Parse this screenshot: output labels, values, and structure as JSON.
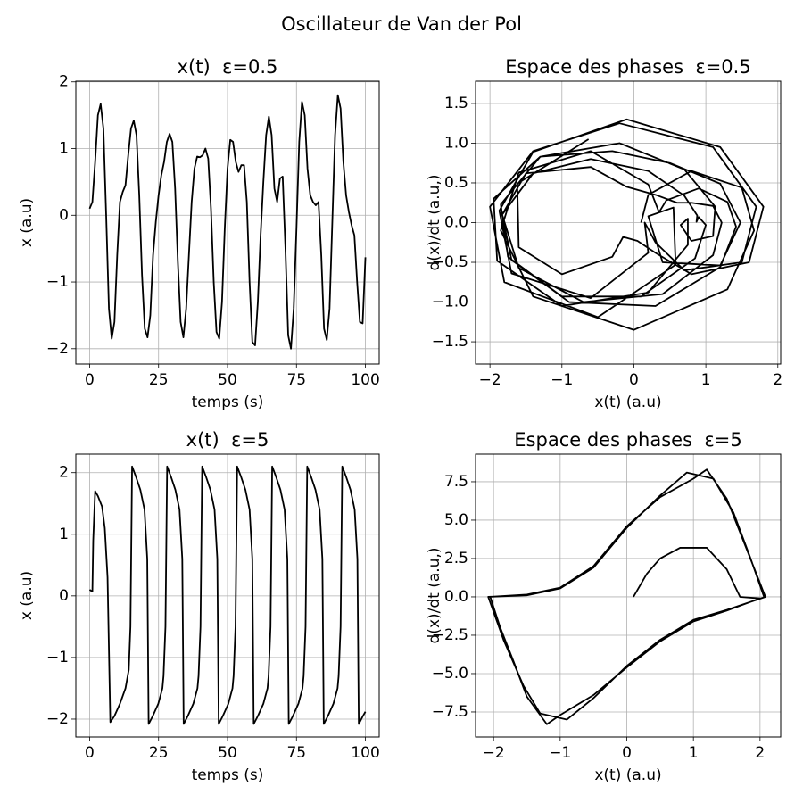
{
  "title": "Oscillateur de Van der Pol",
  "chart_data": [
    {
      "type": "line",
      "title": "x(t)  ε=0.5",
      "xlabel": "temps (s)",
      "ylabel": "x (a.u)",
      "color": "#000000",
      "grid": true,
      "xlim": [
        -5,
        105
      ],
      "ylim": [
        -2.23,
        2.01
      ],
      "xticks": [
        0,
        25,
        50,
        75,
        100
      ],
      "yticks": [
        {
          "value": -2,
          "label": "−2"
        },
        {
          "value": -1,
          "label": "−1"
        },
        0,
        1,
        2
      ],
      "x": [
        0,
        1,
        2,
        3,
        4,
        5,
        6,
        7,
        8,
        9,
        10,
        11,
        12,
        13,
        14,
        15,
        16,
        17,
        18,
        19,
        20,
        21,
        22,
        23,
        24,
        25,
        26,
        27,
        28,
        29,
        30,
        31,
        32,
        33,
        34,
        35,
        36,
        37,
        38,
        39,
        40,
        41,
        42,
        43,
        44,
        45,
        46,
        47,
        48,
        49,
        50,
        51,
        52,
        53,
        54,
        55,
        56,
        57,
        58,
        59,
        60,
        61,
        62,
        63,
        64,
        65,
        66,
        67,
        68,
        69,
        70,
        71,
        72,
        73,
        74,
        75,
        76,
        77,
        78,
        79,
        80,
        81,
        82,
        83,
        84,
        85,
        86,
        87,
        88,
        89,
        90,
        91,
        92,
        93,
        94,
        95,
        96,
        97,
        98,
        99,
        100
      ],
      "values": [
        0.1,
        0.2,
        0.8,
        1.5,
        1.67,
        1.3,
        0,
        -1.4,
        -1.85,
        -1.6,
        -0.6,
        0.2,
        0.35,
        0.45,
        0.9,
        1.3,
        1.42,
        1.2,
        0.3,
        -0.9,
        -1.7,
        -1.83,
        -1.5,
        -0.6,
        -0.1,
        0.3,
        0.6,
        0.8,
        1.1,
        1.22,
        1.1,
        0.4,
        -0.7,
        -1.6,
        -1.83,
        -1.4,
        -0.6,
        0.2,
        0.7,
        0.88,
        0.87,
        0.9,
        1.0,
        0.85,
        0.1,
        -1.0,
        -1.75,
        -1.85,
        -1.3,
        -0.2,
        0.7,
        1.13,
        1.1,
        0.8,
        0.65,
        0.75,
        0.75,
        0.2,
        -1.0,
        -1.9,
        -1.95,
        -1.3,
        -0.3,
        0.5,
        1.2,
        1.48,
        1.2,
        0.4,
        0.2,
        0.55,
        0.58,
        -0.5,
        -1.8,
        -2.0,
        -1.4,
        -0.2,
        1.1,
        1.7,
        1.5,
        0.7,
        0.3,
        0.2,
        0.15,
        0.2,
        -0.6,
        -1.7,
        -1.87,
        -1.4,
        -0.1,
        1.2,
        1.8,
        1.6,
        0.8,
        0.3,
        0.05,
        -0.15,
        -0.3,
        -1.0,
        -1.6,
        -1.62,
        -0.63
      ]
    },
    {
      "type": "line",
      "title": "Espace des phases  ε=0.5",
      "xlabel": "x(t) (a.u)",
      "ylabel": "d(x)/dt (a.u,)",
      "color": "#000000",
      "grid": true,
      "xlim": [
        -2.2,
        2.04
      ],
      "ylim": [
        -1.78,
        1.78
      ],
      "xticks": [
        {
          "value": -2,
          "label": "−2"
        },
        {
          "value": -1,
          "label": "−1"
        },
        0,
        1,
        2
      ],
      "yticks": [
        {
          "value": -1.5,
          "label": "−1.5"
        },
        {
          "value": -1,
          "label": "−1.0"
        },
        {
          "value": -0.5,
          "label": "−0.5"
        },
        {
          "value": 0,
          "label": "0.0"
        },
        0.5,
        {
          "value": 1,
          "label": "1.0"
        },
        1.5
      ],
      "x": [
        0.1,
        0.2,
        0.8,
        1.5,
        1.67,
        1.3,
        0,
        -1.4,
        -1.85,
        -1.6,
        -0.6,
        0.2,
        0.35,
        0.45,
        0.9,
        1.3,
        1.42,
        1.2,
        0.3,
        -0.9,
        -1.7,
        -1.83,
        -1.5,
        -0.6,
        -0.1,
        0.3,
        0.6,
        0.8,
        1.1,
        1.22,
        1.1,
        0.4,
        -0.7,
        -1.6,
        -1.83,
        -1.4,
        -0.6,
        0.2,
        0.7,
        0.88,
        0.87,
        0.9,
        1.0,
        0.85,
        0.1,
        -1.0,
        -1.75,
        -1.85,
        -1.3,
        -0.2,
        0.7,
        1.13,
        1.1,
        0.8,
        0.65,
        0.75,
        0.75,
        0.2,
        -1.0,
        -1.9,
        -1.95,
        -1.3,
        -0.3,
        0.5,
        1.2,
        1.48,
        1.2,
        0.4,
        0.2,
        0.55,
        0.58,
        -0.5,
        -1.8,
        -2.0,
        -1.4,
        -0.2,
        1.1,
        1.7,
        1.5,
        0.7,
        0.3,
        0.2,
        0.15,
        0.2,
        -0.6,
        -1.7,
        -1.87,
        -1.4,
        -0.1,
        1.2,
        1.8,
        1.6,
        0.8,
        0.3,
        0.05,
        -0.15,
        -0.3,
        -1.0,
        -1.6,
        -1.62,
        -0.63
      ],
      "values": [
        0,
        0.35,
        0.65,
        0.44,
        -0.1,
        -0.84,
        -1.35,
        -0.93,
        -0.1,
        0.63,
        0.9,
        0.48,
        0.13,
        0.28,
        0.43,
        0.26,
        -0.05,
        -0.56,
        -1.05,
        -1.0,
        -0.47,
        0.1,
        0.62,
        0.7,
        0.45,
        0.35,
        0.25,
        0.25,
        0.21,
        0,
        -0.41,
        -0.9,
        -1.0,
        -0.57,
        0.1,
        0.62,
        0.8,
        0.65,
        0.34,
        0.09,
        0.01,
        0.07,
        -0.03,
        -0.45,
        -0.93,
        -0.93,
        -0.43,
        0.23,
        0.83,
        1.0,
        0.67,
        0.2,
        -0.17,
        -0.23,
        -0.03,
        0.05,
        -0.28,
        -0.88,
        -1.05,
        -0.48,
        0.3,
        0.83,
        0.9,
        0.75,
        0.49,
        0,
        -0.54,
        -0.5,
        0.08,
        0.19,
        -0.53,
        -1.19,
        -0.75,
        0.2,
        0.9,
        1.25,
        0.95,
        0.2,
        -0.5,
        -0.6,
        -0.25,
        -0.08,
        0,
        -0.38,
        -0.95,
        -0.64,
        0.15,
        0.89,
        1.3,
        0.95,
        0.2,
        -0.5,
        -0.65,
        -0.38,
        -0.23,
        -0.18,
        -0.43,
        -0.65,
        -0.31,
        0.49,
        1.05
      ]
    },
    {
      "type": "line",
      "title": "x(t)  ε=5",
      "xlabel": "temps (s)",
      "ylabel": "x (a.u)",
      "color": "#000000",
      "grid": true,
      "xlim": [
        -5,
        105
      ],
      "ylim": [
        -2.29,
        2.3
      ],
      "xticks": [
        0,
        25,
        50,
        75,
        100
      ],
      "yticks": [
        {
          "value": -2,
          "label": "−2"
        },
        {
          "value": -1,
          "label": "−1"
        },
        0,
        1,
        2
      ],
      "x": [
        0,
        1,
        1.3,
        2,
        3,
        4.5,
        5.5,
        6.5,
        7.5,
        9,
        11,
        13,
        14.2,
        14.8,
        15.4,
        16.9,
        18.4,
        19.9,
        20.9,
        21.4,
        22.9,
        24.9,
        26.4,
        26.8,
        27.5,
        28.1,
        29.6,
        31.1,
        32.6,
        33.6,
        34.1,
        35.6,
        37.6,
        39.1,
        39.5,
        40.2,
        40.8,
        42.3,
        43.8,
        45.3,
        46.3,
        46.8,
        48.3,
        50.3,
        51.8,
        52.2,
        52.9,
        53.5,
        55,
        56.5,
        58,
        59,
        59.5,
        61,
        63,
        64.5,
        64.9,
        65.6,
        66.2,
        67.7,
        69.2,
        70.7,
        71.7,
        72.2,
        73.7,
        75.7,
        77.2,
        77.6,
        78.3,
        78.9,
        80.4,
        81.9,
        83.4,
        84.4,
        84.9,
        86.4,
        88.4,
        89.9,
        90.3,
        91,
        91.6,
        93.1,
        94.6,
        96.1,
        97.1,
        97.6,
        99.1,
        100
      ],
      "values": [
        0.1,
        0.07,
        0.9,
        1.7,
        1.62,
        1.45,
        1.1,
        0.3,
        -2.05,
        -1.95,
        -1.75,
        -1.5,
        -1.2,
        -0.5,
        2.1,
        1.92,
        1.72,
        1.4,
        0.6,
        -2.08,
        -1.95,
        -1.75,
        -1.5,
        -1.3,
        -0.5,
        2.1,
        1.92,
        1.72,
        1.4,
        0.6,
        -2.08,
        -1.95,
        -1.75,
        -1.5,
        -1.3,
        -0.5,
        2.1,
        1.92,
        1.72,
        1.4,
        0.6,
        -2.08,
        -1.95,
        -1.75,
        -1.5,
        -1.3,
        -0.5,
        2.1,
        1.92,
        1.72,
        1.4,
        0.6,
        -2.08,
        -1.95,
        -1.75,
        -1.5,
        -1.3,
        -0.5,
        2.1,
        1.92,
        1.72,
        1.4,
        0.6,
        -2.08,
        -1.95,
        -1.75,
        -1.5,
        -1.3,
        -0.5,
        2.1,
        1.92,
        1.72,
        1.4,
        0.6,
        -2.08,
        -1.95,
        -1.75,
        -1.5,
        -1.3,
        -0.5,
        2.1,
        1.92,
        1.72,
        1.4,
        0.6,
        -2.08,
        -1.95,
        -1.88
      ]
    },
    {
      "type": "line",
      "title": "Espace des phases  ε=5",
      "xlabel": "x(t) (a.u)",
      "ylabel": "d(x)/dt (a.u,)",
      "color": "#000000",
      "grid": true,
      "xlim": [
        -2.27,
        2.31
      ],
      "ylim": [
        -9.13,
        9.3
      ],
      "xticks": [
        {
          "value": -2,
          "label": "−2"
        },
        {
          "value": -1,
          "label": "−1"
        },
        0,
        1,
        2
      ],
      "yticks": [
        {
          "value": -7.5,
          "label": "−7.5"
        },
        {
          "value": -5,
          "label": "−5.0"
        },
        {
          "value": -2.5,
          "label": "−2.5"
        },
        {
          "value": 0,
          "label": "0.0"
        },
        2.5,
        {
          "value": 5,
          "label": "5.0"
        },
        7.5
      ],
      "x": [
        0.1,
        0.3,
        0.5,
        0.8,
        1.2,
        1.5,
        1.7,
        2.0,
        1.5,
        1,
        0.5,
        0,
        -0.5,
        -1,
        -1.2,
        -1.5,
        -1.7,
        -1.9,
        -2.05,
        -1.5,
        -1,
        -0.5,
        0,
        0.5,
        1,
        1.2,
        1.5,
        1.7,
        1.9,
        2.08,
        1.5,
        1,
        0.5,
        0,
        -0.5,
        -0.9,
        -1.3,
        -1.55,
        -1.85,
        -2.08,
        -1.5,
        -1,
        -0.5,
        0,
        0.5,
        0.9,
        1.3,
        1.6,
        1.85,
        2.06
      ],
      "values": [
        0,
        1.5,
        2.5,
        3.2,
        3.2,
        1.8,
        0,
        -0.1,
        -0.9,
        -1.6,
        -2.9,
        -4.6,
        -6.4,
        -7.7,
        -8.3,
        -6.5,
        -4.2,
        -2,
        0,
        0.15,
        0.6,
        2,
        4.6,
        6.5,
        7.7,
        8.3,
        6.4,
        4.2,
        2,
        0,
        -0.85,
        -1.5,
        -2.8,
        -4.5,
        -6.6,
        -8.0,
        -7.6,
        -5.8,
        -2.8,
        0,
        0.1,
        0.55,
        1.9,
        4.5,
        6.6,
        8.1,
        7.7,
        5.5,
        2.6,
        0
      ]
    }
  ]
}
